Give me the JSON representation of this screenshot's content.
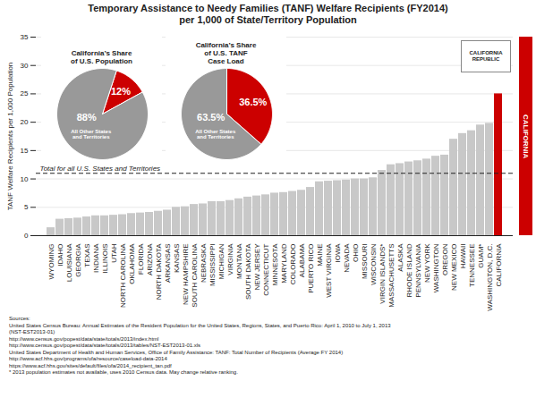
{
  "chart_data": [
    {
      "type": "bar",
      "title": "Temporary Assistance to Needy Families (TANF) Welfare Recipients (FY2014)",
      "subtitle": "per 1,000 of State/Territory Population",
      "ylabel": "TANF Welfare Recipients per 1,000 Population",
      "categories": [
        "WYOMING",
        "IDAHO",
        "LOUISIANA",
        "GEORGIA",
        "TEXAS",
        "INDIANA",
        "ILLINOIS",
        "UTAH",
        "NORTH CAROLINA",
        "OKLAHOMA",
        "FLORIDA",
        "ARIZONA",
        "NORTH DAKOTA",
        "ARKANSAS",
        "KANSAS",
        "NEW HAMPSHIRE",
        "SOUTH CAROLINA",
        "NEBRASKA",
        "MISSISSIPPI",
        "MICHIGAN",
        "VIRGINIA",
        "MONTANA",
        "SOUTH DAKOTA",
        "NEW JERSEY",
        "CONNECTICUT",
        "MINNESOTA",
        "MARYLAND",
        "COLORADO",
        "ALABAMA",
        "PUERTO RICO",
        "MAINE",
        "WEST VIRGINIA",
        "IOWA",
        "NEVADA",
        "OHIO",
        "MISSOURI",
        "WISCONSIN",
        "VIRGIN ISLANDS*",
        "MASSACHUSETTS",
        "ALASKA",
        "RHODE ISLAND",
        "PENNSYLVANIA",
        "NEW YORK",
        "WASHINGTON",
        "OREGON",
        "NEW MEXICO",
        "HAWAII",
        "TENNESSEE",
        "GUAM*",
        "WASHINGTON, D.C.",
        "CALIFORNIA"
      ],
      "values": [
        1.4,
        2.9,
        3.0,
        3.1,
        3.3,
        3.5,
        3.5,
        3.6,
        3.7,
        3.9,
        4.0,
        4.1,
        4.3,
        4.5,
        5.0,
        5.1,
        5.5,
        5.6,
        6.0,
        6.0,
        6.2,
        6.5,
        6.8,
        7.0,
        7.2,
        7.5,
        7.6,
        7.8,
        8.0,
        8.5,
        9.5,
        9.6,
        9.7,
        9.8,
        10.0,
        10.0,
        10.2,
        11.5,
        12.5,
        12.7,
        13.0,
        13.2,
        13.5,
        14.0,
        14.2,
        17.0,
        18.0,
        18.5,
        19.5,
        19.8,
        25.0
      ],
      "colors": [
        "#c8c8c8",
        "#c8c8c8",
        "#c8c8c8",
        "#c8c8c8",
        "#c8c8c8",
        "#c8c8c8",
        "#c8c8c8",
        "#c8c8c8",
        "#c8c8c8",
        "#c8c8c8",
        "#c8c8c8",
        "#c8c8c8",
        "#c8c8c8",
        "#c8c8c8",
        "#c8c8c8",
        "#c8c8c8",
        "#c8c8c8",
        "#c8c8c8",
        "#c8c8c8",
        "#c8c8c8",
        "#c8c8c8",
        "#c8c8c8",
        "#c8c8c8",
        "#c8c8c8",
        "#c8c8c8",
        "#c8c8c8",
        "#c8c8c8",
        "#c8c8c8",
        "#c8c8c8",
        "#c8c8c8",
        "#c8c8c8",
        "#c8c8c8",
        "#c8c8c8",
        "#c8c8c8",
        "#c8c8c8",
        "#c8c8c8",
        "#c8c8c8",
        "#c8c8c8",
        "#c8c8c8",
        "#c8c8c8",
        "#c8c8c8",
        "#c8c8c8",
        "#c8c8c8",
        "#c8c8c8",
        "#c8c8c8",
        "#c8c8c8",
        "#c8c8c8",
        "#c8c8c8",
        "#c8c8c8",
        "#c8c8c8",
        "#cc0000"
      ],
      "ylim": [
        0,
        35
      ],
      "yticks": [
        0,
        5,
        10,
        15,
        20,
        25,
        30,
        35
      ],
      "grid": true,
      "reference_line": {
        "value": 11.0,
        "label": "Total for all U.S. States and Territories"
      },
      "annotations": [
        {
          "text": "CALIFORNIA",
          "color": "#cc0000"
        },
        {
          "text": "CALIFORNIA\nREPUBLIC"
        },
        {
          "text": "Sources:"
        },
        {
          "text": "United States Census Bureau: Annual Estimates of the Resident Population for the United States, Regions, States, and Puerto Rico: April 1, 2010 to July 1, 2013"
        },
        {
          "text": "(NST-EST2013-01)"
        },
        {
          "text": "http://www.census.gov/popest/data/state/totals/2013/index.html"
        },
        {
          "text": "http://www.census.gov/popest/data/state/totals/2013/tables/NST-EST2013-01.xls"
        },
        {
          "text": "United States Department of Health and Human Services, Office of Family Assistance: TANF: Total Number of Recipients (Average FY 2014)"
        },
        {
          "text": "http://www.acf.hhs.gov/programs/ofa/resource/caseload-data-2014"
        },
        {
          "text": "https://www.acf.hhs.gov/sites/default/files/ofa/2014_recipient_tan.pdf"
        },
        {
          "text": "* 2013 population estimates not available, uses 2010 Census data. May change relative ranking."
        }
      ]
    },
    {
      "type": "pie",
      "title": "California’s Share\nof U.S. Population",
      "categories": [
        null,
        "All Other States\nand Territories"
      ],
      "values": [
        12,
        88
      ],
      "value_labels": [
        "12%",
        "88%"
      ],
      "colors": [
        "#cc0000",
        "#999999"
      ],
      "data_labels": true
    },
    {
      "type": "pie",
      "title": "California’s Share\nof U.S. TANF\nCase Load",
      "categories": [
        null,
        "All Other States\nand Territories"
      ],
      "values": [
        36.5,
        63.5
      ],
      "value_labels": [
        "36.5%",
        "63.5%"
      ],
      "colors": [
        "#cc0000",
        "#999999"
      ],
      "data_labels": true
    }
  ]
}
